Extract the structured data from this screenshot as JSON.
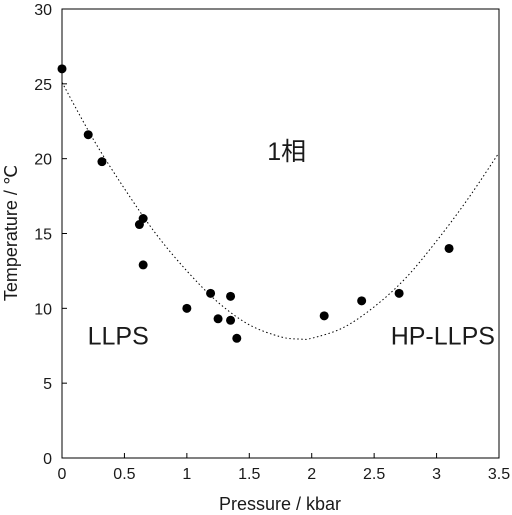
{
  "chart_data": {
    "type": "scatter",
    "xlabel": "Pressure / kbar",
    "ylabel": "Temperature / ℃",
    "xlim": [
      0,
      3.5
    ],
    "ylim": [
      0,
      30
    ],
    "x_ticks": [
      "0",
      "0.5",
      "1",
      "1.5",
      "2",
      "2.5",
      "3",
      "3.5"
    ],
    "y_ticks": [
      "0",
      "5",
      "10",
      "15",
      "20",
      "25",
      "30"
    ],
    "grid": false,
    "marker_color": "#000000",
    "points": [
      {
        "x": 0.0,
        "y": 26.0
      },
      {
        "x": 0.21,
        "y": 21.6
      },
      {
        "x": 0.32,
        "y": 19.8
      },
      {
        "x": 0.62,
        "y": 15.6
      },
      {
        "x": 0.65,
        "y": 16.0
      },
      {
        "x": 0.65,
        "y": 12.9
      },
      {
        "x": 1.0,
        "y": 10.0
      },
      {
        "x": 1.19,
        "y": 11.0
      },
      {
        "x": 1.25,
        "y": 9.3
      },
      {
        "x": 1.35,
        "y": 10.8
      },
      {
        "x": 1.35,
        "y": 9.2
      },
      {
        "x": 1.4,
        "y": 8.0
      },
      {
        "x": 2.1,
        "y": 9.5
      },
      {
        "x": 2.4,
        "y": 10.5
      },
      {
        "x": 2.7,
        "y": 11.0
      },
      {
        "x": 3.1,
        "y": 14.0
      }
    ],
    "fit_curve": {
      "style": "dotted",
      "x": [
        0.0,
        0.25,
        0.5,
        0.75,
        1.0,
        1.25,
        1.5,
        1.75,
        1.9,
        2.0,
        2.25,
        2.5,
        2.75,
        3.0,
        3.25,
        3.5
      ],
      "y": [
        25.1,
        21.3,
        18.0,
        15.0,
        12.5,
        10.4,
        8.9,
        8.1,
        7.95,
        8.0,
        8.7,
        10.1,
        12.0,
        14.5,
        17.3,
        20.4
      ]
    },
    "annotations": [
      {
        "text": "1相",
        "x": 1.8,
        "y": 19.9
      },
      {
        "text": "LLPS",
        "x": 0.45,
        "y": 7.6
      },
      {
        "text": "HP-LLPS",
        "x": 3.05,
        "y": 7.6
      }
    ]
  }
}
